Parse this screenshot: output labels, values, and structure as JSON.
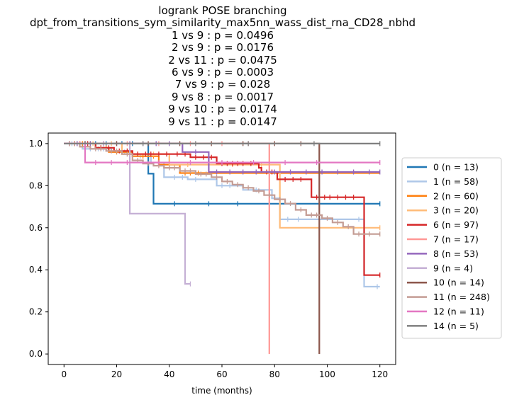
{
  "chart_data": {
    "type": "line",
    "subtype": "kaplan-meier step",
    "title_lines": [
      "logrank POSE branching",
      "dpt_from_transitions_sym_similarity_max5nn_wass_dist_rna_CD28_nbhd",
      "1 vs 9 :  p = 0.0496",
      "2 vs 9 :  p = 0.0176",
      "2 vs 11 :  p = 0.0475",
      "6 vs 9 :  p = 0.0003",
      "7 vs 9 :  p = 0.028",
      "9 vs 8 :  p = 0.0017",
      "9 vs 10 :  p = 0.0174",
      "9 vs 11 :  p = 0.0147"
    ],
    "xlabel": "time (months)",
    "ylabel": "",
    "xlim": [
      -6,
      126
    ],
    "ylim": [
      -0.05,
      1.05
    ],
    "xticks": [
      "0",
      "20",
      "40",
      "60",
      "80",
      "100",
      "120"
    ],
    "yticks": [
      "0.0",
      "0.2",
      "0.4",
      "0.6",
      "0.8",
      "1.0"
    ],
    "legend_position": "right, outside plot",
    "series": [
      {
        "name": "0 (n = 13)",
        "color": "#1f77b4",
        "steps": [
          [
            0,
            1.0
          ],
          [
            32,
            0.857
          ],
          [
            34,
            0.714
          ],
          [
            120,
            0.714
          ]
        ],
        "censors": [
          [
            2,
            1.0
          ],
          [
            5,
            1.0
          ],
          [
            8,
            1.0
          ],
          [
            12,
            1.0
          ],
          [
            16,
            1.0
          ],
          [
            22,
            1.0
          ],
          [
            26,
            1.0
          ],
          [
            42,
            0.714
          ],
          [
            55,
            0.714
          ],
          [
            66,
            0.714
          ],
          [
            120,
            0.714
          ]
        ]
      },
      {
        "name": "1 (n = 58)",
        "color": "#aec7e8",
        "steps": [
          [
            0,
            1.0
          ],
          [
            7,
            0.975
          ],
          [
            18,
            0.96
          ],
          [
            26,
            0.94
          ],
          [
            33,
            0.91
          ],
          [
            38,
            0.84
          ],
          [
            47,
            0.83
          ],
          [
            58,
            0.8
          ],
          [
            68,
            0.78
          ],
          [
            79,
            0.74
          ],
          [
            82,
            0.64
          ],
          [
            114,
            0.32
          ],
          [
            120,
            0.32
          ]
        ],
        "censors": [
          [
            3,
            1.0
          ],
          [
            6,
            1.0
          ],
          [
            10,
            0.975
          ],
          [
            13,
            0.975
          ],
          [
            15,
            0.975
          ],
          [
            20,
            0.96
          ],
          [
            23,
            0.96
          ],
          [
            29,
            0.94
          ],
          [
            36,
            0.91
          ],
          [
            42,
            0.84
          ],
          [
            45,
            0.84
          ],
          [
            50,
            0.83
          ],
          [
            60,
            0.8
          ],
          [
            63,
            0.8
          ],
          [
            73,
            0.78
          ],
          [
            85,
            0.64
          ],
          [
            89,
            0.64
          ],
          [
            112,
            0.64
          ],
          [
            119,
            0.32
          ]
        ]
      },
      {
        "name": "2 (n = 60)",
        "color": "#ff7f0e",
        "steps": [
          [
            0,
            1.0
          ],
          [
            12,
            0.98
          ],
          [
            17,
            0.96
          ],
          [
            26,
            0.94
          ],
          [
            36,
            0.9
          ],
          [
            44,
            0.86
          ],
          [
            52,
            0.86
          ],
          [
            120,
            0.86
          ]
        ],
        "censors": [
          [
            4,
            1.0
          ],
          [
            7,
            1.0
          ],
          [
            10,
            1.0
          ],
          [
            14,
            0.98
          ],
          [
            16,
            0.98
          ],
          [
            20,
            0.96
          ],
          [
            22,
            0.96
          ],
          [
            25,
            0.96
          ],
          [
            30,
            0.94
          ],
          [
            34,
            0.94
          ],
          [
            40,
            0.9
          ],
          [
            46,
            0.86
          ],
          [
            48,
            0.86
          ],
          [
            51,
            0.86
          ]
        ]
      },
      {
        "name": "3 (n = 20)",
        "color": "#ffbb78",
        "steps": [
          [
            0,
            1.0
          ],
          [
            22,
            0.95
          ],
          [
            40,
            0.9
          ],
          [
            82,
            0.6
          ],
          [
            120,
            0.6
          ]
        ],
        "censors": [
          [
            5,
            1.0
          ],
          [
            11,
            1.0
          ],
          [
            18,
            1.0
          ],
          [
            28,
            0.95
          ],
          [
            34,
            0.95
          ],
          [
            47,
            0.9
          ],
          [
            55,
            0.9
          ],
          [
            64,
            0.9
          ],
          [
            75,
            0.9
          ],
          [
            120,
            0.6
          ]
        ]
      },
      {
        "name": "6 (n = 97)",
        "color": "#d62728",
        "steps": [
          [
            0,
            1.0
          ],
          [
            12,
            0.98
          ],
          [
            19,
            0.965
          ],
          [
            26,
            0.95
          ],
          [
            48,
            0.935
          ],
          [
            58,
            0.905
          ],
          [
            74,
            0.885
          ],
          [
            75,
            0.865
          ],
          [
            81,
            0.83
          ],
          [
            94,
            0.745
          ],
          [
            114,
            0.375
          ],
          [
            120,
            0.375
          ]
        ],
        "censors": [
          [
            2,
            1.0
          ],
          [
            4,
            1.0
          ],
          [
            6,
            1.0
          ],
          [
            9,
            1.0
          ],
          [
            14,
            0.98
          ],
          [
            17,
            0.98
          ],
          [
            21,
            0.965
          ],
          [
            24,
            0.965
          ],
          [
            28,
            0.95
          ],
          [
            31,
            0.95
          ],
          [
            33,
            0.95
          ],
          [
            36,
            0.95
          ],
          [
            39,
            0.95
          ],
          [
            43,
            0.95
          ],
          [
            46,
            0.95
          ],
          [
            50,
            0.935
          ],
          [
            53,
            0.935
          ],
          [
            56,
            0.935
          ],
          [
            60,
            0.905
          ],
          [
            62,
            0.905
          ],
          [
            64,
            0.905
          ],
          [
            66,
            0.905
          ],
          [
            68,
            0.905
          ],
          [
            71,
            0.905
          ],
          [
            77,
            0.865
          ],
          [
            79,
            0.865
          ],
          [
            84,
            0.83
          ],
          [
            87,
            0.83
          ],
          [
            90,
            0.83
          ],
          [
            96,
            0.745
          ],
          [
            99,
            0.745
          ],
          [
            101,
            0.745
          ],
          [
            104,
            0.745
          ],
          [
            107,
            0.745
          ],
          [
            110,
            0.745
          ],
          [
            120,
            0.375
          ]
        ]
      },
      {
        "name": "7 (n = 17)",
        "color": "#ff9896",
        "steps": [
          [
            0,
            1.0
          ],
          [
            78,
            1.0
          ],
          [
            78,
            0.0
          ]
        ],
        "censors": [
          [
            6,
            1.0
          ],
          [
            15,
            1.0
          ],
          [
            24,
            1.0
          ],
          [
            36,
            1.0
          ],
          [
            48,
            1.0
          ],
          [
            60,
            1.0
          ],
          [
            70,
            1.0
          ]
        ]
      },
      {
        "name": "8 (n = 53)",
        "color": "#9467bd",
        "steps": [
          [
            0,
            1.0
          ],
          [
            45,
            0.96
          ],
          [
            55,
            0.865
          ],
          [
            120,
            0.865
          ]
        ],
        "censors": [
          [
            5,
            1.0
          ],
          [
            10,
            1.0
          ],
          [
            15,
            1.0
          ],
          [
            20,
            1.0
          ],
          [
            25,
            1.0
          ],
          [
            30,
            1.0
          ],
          [
            35,
            1.0
          ],
          [
            40,
            1.0
          ],
          [
            50,
            0.96
          ],
          [
            58,
            0.865
          ],
          [
            63,
            0.865
          ],
          [
            68,
            0.865
          ],
          [
            73,
            0.865
          ],
          [
            80,
            0.865
          ],
          [
            86,
            0.865
          ],
          [
            92,
            0.865
          ],
          [
            98,
            0.865
          ],
          [
            104,
            0.865
          ],
          [
            110,
            0.865
          ],
          [
            116,
            0.865
          ],
          [
            120,
            0.865
          ]
        ]
      },
      {
        "name": "9 (n = 4)",
        "color": "#c5b0d5",
        "steps": [
          [
            0,
            1.0
          ],
          [
            25,
            0.667
          ],
          [
            46,
            0.333
          ],
          [
            48,
            0.333
          ]
        ],
        "censors": [
          [
            15,
            1.0
          ],
          [
            48,
            0.333
          ]
        ]
      },
      {
        "name": "10 (n = 14)",
        "color": "#8c564b",
        "steps": [
          [
            0,
            1.0
          ],
          [
            97,
            1.0
          ],
          [
            97,
            0.0
          ]
        ],
        "censors": [
          [
            8,
            1.0
          ],
          [
            20,
            1.0
          ],
          [
            32,
            1.0
          ],
          [
            44,
            1.0
          ],
          [
            56,
            1.0
          ],
          [
            68,
            1.0
          ],
          [
            80,
            1.0
          ],
          [
            90,
            1.0
          ]
        ]
      },
      {
        "name": "11 (n = 248)",
        "color": "#c49c94",
        "steps": [
          [
            0,
            1.0
          ],
          [
            6,
            0.985
          ],
          [
            10,
            0.975
          ],
          [
            16,
            0.965
          ],
          [
            22,
            0.95
          ],
          [
            26,
            0.92
          ],
          [
            30,
            0.905
          ],
          [
            34,
            0.895
          ],
          [
            38,
            0.885
          ],
          [
            44,
            0.87
          ],
          [
            50,
            0.855
          ],
          [
            56,
            0.84
          ],
          [
            60,
            0.82
          ],
          [
            64,
            0.805
          ],
          [
            68,
            0.79
          ],
          [
            72,
            0.775
          ],
          [
            76,
            0.755
          ],
          [
            80,
            0.735
          ],
          [
            84,
            0.715
          ],
          [
            88,
            0.685
          ],
          [
            92,
            0.66
          ],
          [
            98,
            0.645
          ],
          [
            102,
            0.625
          ],
          [
            106,
            0.605
          ],
          [
            110,
            0.57
          ],
          [
            120,
            0.57
          ]
        ],
        "censors": [
          [
            2,
            1.0
          ],
          [
            4,
            1.0
          ],
          [
            8,
            0.985
          ],
          [
            12,
            0.975
          ],
          [
            14,
            0.975
          ],
          [
            18,
            0.965
          ],
          [
            20,
            0.965
          ],
          [
            24,
            0.95
          ],
          [
            28,
            0.92
          ],
          [
            32,
            0.905
          ],
          [
            36,
            0.895
          ],
          [
            40,
            0.885
          ],
          [
            42,
            0.885
          ],
          [
            46,
            0.87
          ],
          [
            48,
            0.87
          ],
          [
            52,
            0.855
          ],
          [
            54,
            0.855
          ],
          [
            58,
            0.84
          ],
          [
            62,
            0.82
          ],
          [
            66,
            0.805
          ],
          [
            70,
            0.79
          ],
          [
            74,
            0.775
          ],
          [
            78,
            0.755
          ],
          [
            82,
            0.735
          ],
          [
            86,
            0.715
          ],
          [
            90,
            0.685
          ],
          [
            94,
            0.66
          ],
          [
            96,
            0.66
          ],
          [
            100,
            0.645
          ],
          [
            104,
            0.625
          ],
          [
            108,
            0.605
          ],
          [
            112,
            0.57
          ],
          [
            116,
            0.57
          ],
          [
            120,
            0.57
          ]
        ]
      },
      {
        "name": "12 (n = 11)",
        "color": "#e377c2",
        "steps": [
          [
            0,
            1.0
          ],
          [
            8,
            0.91
          ],
          [
            120,
            0.91
          ]
        ],
        "censors": [
          [
            12,
            0.91
          ],
          [
            18,
            0.91
          ],
          [
            24,
            0.91
          ],
          [
            36,
            0.91
          ],
          [
            48,
            0.91
          ],
          [
            60,
            0.91
          ],
          [
            72,
            0.91
          ],
          [
            84,
            0.91
          ],
          [
            96,
            0.91
          ],
          [
            120,
            0.91
          ]
        ]
      },
      {
        "name": "14 (n = 5)",
        "color": "#7f7f7f",
        "steps": [
          [
            0,
            1.0
          ],
          [
            120,
            1.0
          ]
        ],
        "censors": [
          [
            30,
            1.0
          ],
          [
            50,
            1.0
          ],
          [
            70,
            1.0
          ],
          [
            95,
            1.0
          ],
          [
            120,
            1.0
          ]
        ]
      }
    ]
  }
}
